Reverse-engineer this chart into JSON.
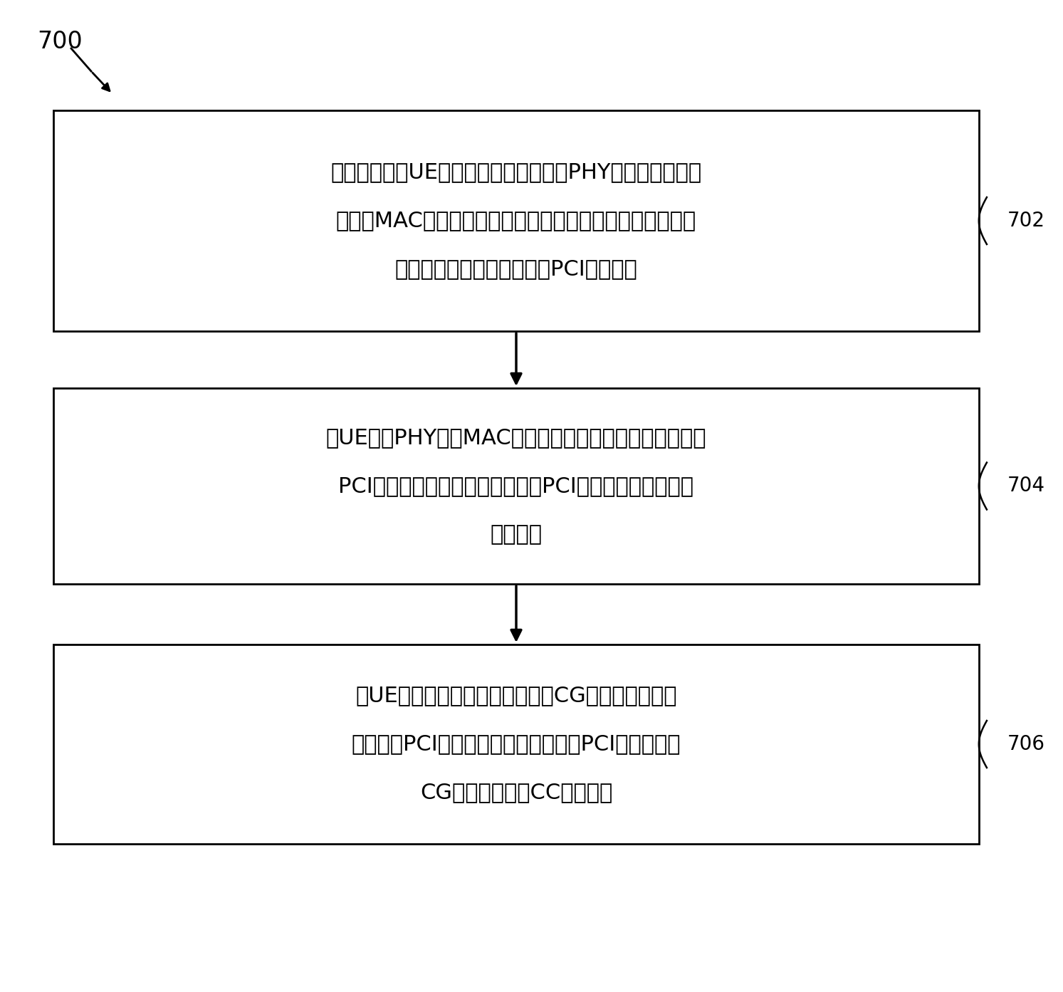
{
  "bg_color": "#ffffff",
  "text_color": "#000000",
  "box_color": "#ffffff",
  "box_edge_color": "#000000",
  "arrow_color": "#000000",
  "label_700": "700",
  "label_702": "702",
  "label_704": "704",
  "label_706": "706",
  "box1_text_lines": [
    "由用户设备（UE）接收配置支持物理（PHY）层或介质接入",
    "控制（MAC）层移动性信令的至少一个候选目标小区的多个",
    "候选目标物理小区标识符（PCI）的信令"
  ],
  "box2_text_lines": [
    "由UE基于PHY层或MAC层移动性信令来参与到与候选目标",
    "PCI中的所选一个或多个候选目标PCI相关联的目标小区的",
    "切换过程"
  ],
  "box3_text_lines": [
    "由UE修改用于至少一个小区组（CG）的配置，其中",
    "候选目标PCI中的一个或多个候选目标PCI与至少一个",
    "CG的分量载波（CC）相关联"
  ],
  "fontsize_main": 22,
  "fontsize_label": 20,
  "fontsize_700": 24,
  "line_width": 2.0,
  "fig_w": 14.93,
  "fig_h": 13.93,
  "dpi": 100
}
